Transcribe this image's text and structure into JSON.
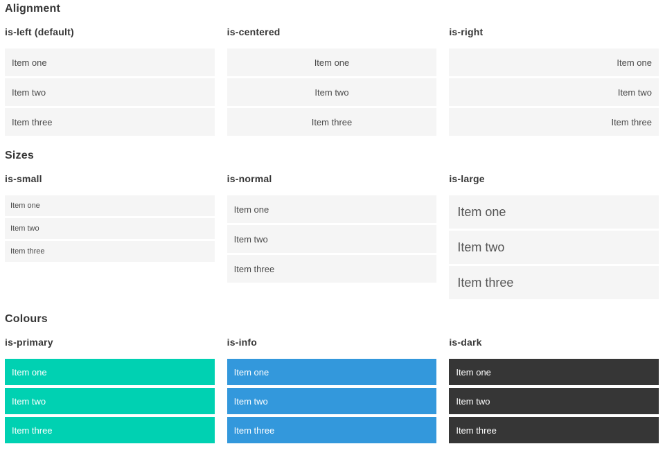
{
  "colors": {
    "primary": "#00d1b2",
    "info": "#3398dc",
    "dark": "#363636",
    "item_background": "#f5f5f5",
    "heading_text": "#363636"
  },
  "sections": [
    {
      "title": "Alignment",
      "columns": [
        {
          "heading": "is-left (default)",
          "items": [
            "Item one",
            "Item two",
            "Item three"
          ]
        },
        {
          "heading": "is-centered",
          "items": [
            "Item one",
            "Item two",
            "Item three"
          ]
        },
        {
          "heading": "is-right",
          "items": [
            "Item one",
            "Item two",
            "Item three"
          ]
        }
      ]
    },
    {
      "title": "Sizes",
      "columns": [
        {
          "heading": "is-small",
          "items": [
            "Item one",
            "Item two",
            "Item three"
          ]
        },
        {
          "heading": "is-normal",
          "items": [
            "Item one",
            "Item two",
            "Item three"
          ]
        },
        {
          "heading": "is-large",
          "items": [
            "Item one",
            "Item two",
            "Item three"
          ]
        }
      ]
    },
    {
      "title": "Colours",
      "columns": [
        {
          "heading": "is-primary",
          "items": [
            "Item one",
            "Item two",
            "Item three"
          ]
        },
        {
          "heading": "is-info",
          "items": [
            "Item one",
            "Item two",
            "Item three"
          ]
        },
        {
          "heading": "is-dark",
          "items": [
            "Item one",
            "Item two",
            "Item three"
          ]
        }
      ]
    }
  ]
}
